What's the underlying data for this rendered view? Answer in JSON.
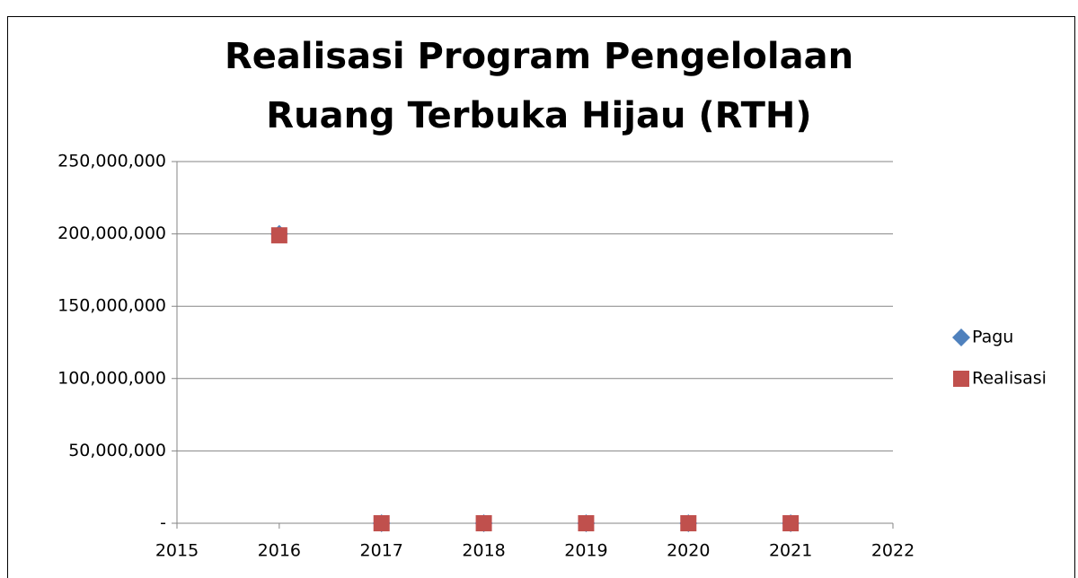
{
  "chart_data": {
    "type": "scatter",
    "title": "Realisasi Program Pengelolaan Ruang Terbuka Hijau (RTH)",
    "series": [
      {
        "name": "Pagu",
        "color": "#4f81bd",
        "marker": "diamond",
        "x": [
          2016,
          2017,
          2018,
          2019,
          2020,
          2021
        ],
        "values": [
          200000000,
          0,
          0,
          0,
          0,
          0
        ]
      },
      {
        "name": "Realisasi",
        "color": "#c0504d",
        "marker": "square",
        "x": [
          2016,
          2017,
          2018,
          2019,
          2020,
          2021
        ],
        "values": [
          199000000,
          0,
          0,
          0,
          0,
          0
        ]
      }
    ],
    "xlim": [
      2015,
      2022
    ],
    "xticks": [
      2015,
      2016,
      2017,
      2018,
      2019,
      2020,
      2021,
      2022
    ],
    "ylim": [
      0,
      250000000
    ],
    "yticks": [
      {
        "value": 0,
        "label": "-"
      },
      {
        "value": 50000000,
        "label": "50,000,000"
      },
      {
        "value": 100000000,
        "label": "100,000,000"
      },
      {
        "value": 150000000,
        "label": "150,000,000"
      },
      {
        "value": 200000000,
        "label": "200,000,000"
      },
      {
        "value": 250000000,
        "label": "250,000,000"
      }
    ],
    "grid": true,
    "legend": "right"
  }
}
